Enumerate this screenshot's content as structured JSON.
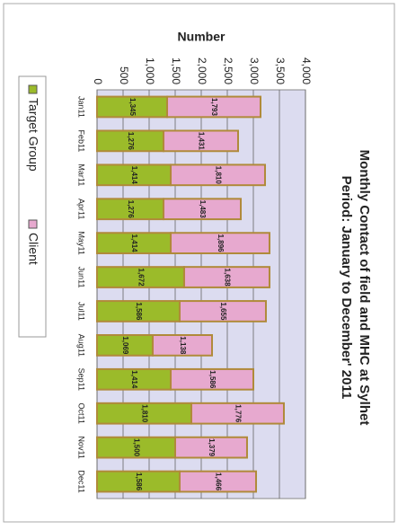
{
  "chart_data": {
    "type": "stacked_bar",
    "title": "Monthly Contact of field and MHC at Sylhet",
    "subtitle": "Period: January to December' 2011",
    "y_label": "Number",
    "categories": [
      "Jan11",
      "Feb11",
      "Mar11",
      "Apr11",
      "May11",
      "Jun11",
      "Jul11",
      "Aug11",
      "Sep11",
      "Oct11",
      "Nov11",
      "Dec11"
    ],
    "series": [
      {
        "name": "Target Group",
        "color": "#9bbb2a",
        "values": [
          1345,
          1276,
          1414,
          1276,
          1414,
          1672,
          1586,
          1069,
          1414,
          1810,
          1500,
          1586
        ],
        "value_labels": [
          "1,345",
          "1,276",
          "1,414",
          "1,276",
          "1,414",
          "1,672",
          "1,586",
          "1,069",
          "1,414",
          "1,810",
          "1,500",
          "1,586"
        ]
      },
      {
        "name": "Client",
        "color": "#e7a9cf",
        "values": [
          1793,
          1431,
          1810,
          1483,
          1896,
          1638,
          1655,
          1138,
          1586,
          1776,
          1379,
          1466
        ],
        "value_labels": [
          "1,793",
          "1,431",
          "1,810",
          "1,483",
          "1,896",
          "1,638",
          "1,655",
          "1,138",
          "1,586",
          "1,776",
          "1,379",
          "1,466"
        ]
      }
    ],
    "ylim": [
      0,
      4000
    ],
    "yticks": [
      0,
      {
        "value": 500,
        "label": "500"
      },
      {
        "value": 1000,
        "label": "1,000"
      },
      {
        "value": 1500,
        "label": "1,500"
      },
      {
        "value": 2000,
        "label": "2,000"
      },
      {
        "value": 2500,
        "label": "2,500"
      },
      {
        "value": 3000,
        "label": "3,000"
      },
      {
        "value": 3500,
        "label": "3,500"
      },
      {
        "value": 4000,
        "label": "4,000"
      }
    ],
    "grid": true,
    "legend": "bottom"
  }
}
